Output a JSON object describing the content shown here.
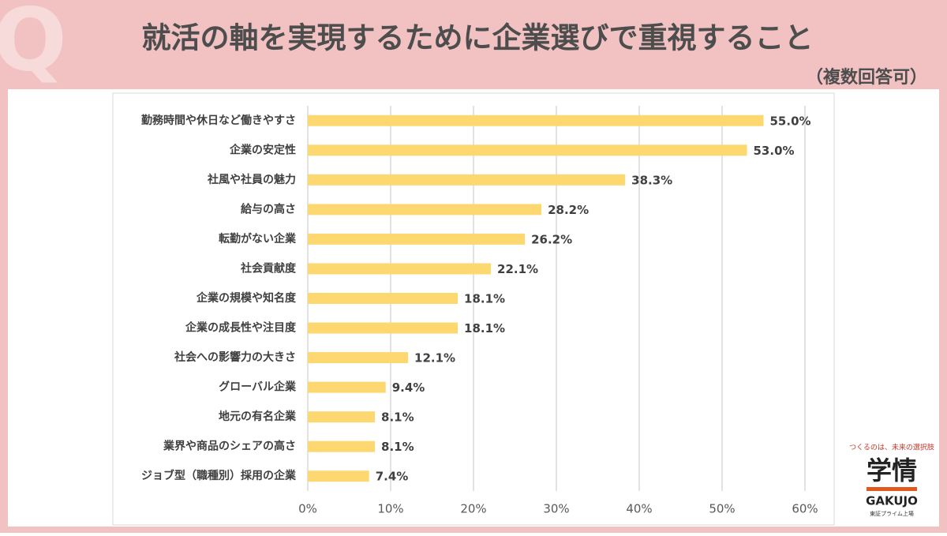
{
  "chart_data": {
    "type": "hbar",
    "title": "就活の軸を実現するために企業選びで重視すること",
    "subtitle": "（複数回答可）",
    "badge": "Q",
    "categories": [
      "勤務時間や休日など働きやすさ",
      "企業の安定性",
      "社風や社員の魅力",
      "給与の高さ",
      "転勤がない企業",
      "社会貢献度",
      "企業の規模や知名度",
      "企業の成長性や注目度",
      "社会への影響力の大きさ",
      "グローバル企業",
      "地元の有名企業",
      "業界や商品のシェアの高さ",
      "ジョブ型（職種別）採用の企業"
    ],
    "values": [
      55.0,
      53.0,
      38.3,
      28.2,
      26.2,
      22.1,
      18.1,
      18.1,
      12.1,
      9.4,
      8.1,
      8.1,
      7.4
    ],
    "value_labels": [
      "55.0%",
      "53.0%",
      "38.3%",
      "28.2%",
      "26.2%",
      "22.1%",
      "18.1%",
      "18.1%",
      "12.1%",
      "9.4%",
      "8.1%",
      "8.1%",
      "7.4%"
    ],
    "color": "#fdd870",
    "xlim": [
      0,
      60
    ],
    "xticks": [
      {
        "value": 0,
        "label": "0%"
      },
      {
        "value": 10,
        "label": "10%"
      },
      {
        "value": 20,
        "label": "20%"
      },
      {
        "value": 30,
        "label": "30%"
      },
      {
        "value": 40,
        "label": "40%"
      },
      {
        "value": 50,
        "label": "50%"
      },
      {
        "value": 60,
        "label": "60%"
      }
    ],
    "grid": true
  },
  "logo": {
    "tagline": "つくるのは、未来の選択肢",
    "name": "学情",
    "roman": "GAKUJO",
    "listing": "東証プライム上場"
  }
}
